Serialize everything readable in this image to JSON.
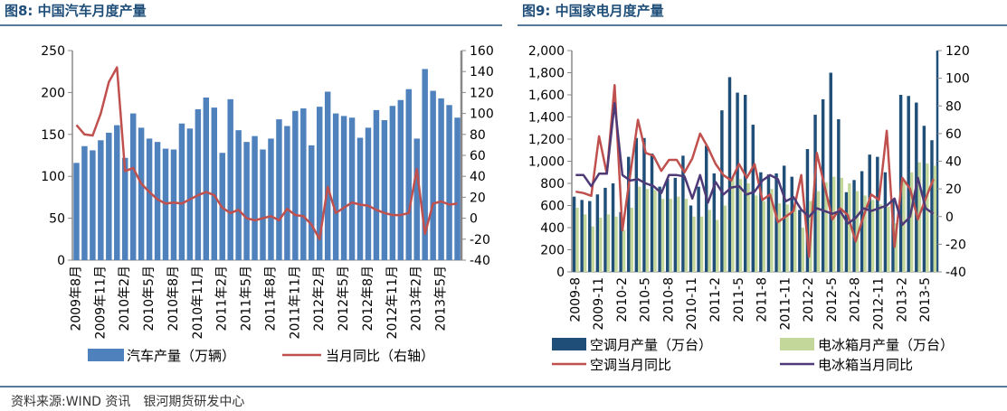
{
  "source": "资料来源:WIND 资讯　银河期货研发中心",
  "chart_data": [
    {
      "type": "bar",
      "title": "图8:  中国汽车月度产量",
      "categories": [
        "2009年8月",
        "2009年9月",
        "2009年10月",
        "2009年11月",
        "2009年12月",
        "2010年1月",
        "2010年2月",
        "2010年3月",
        "2010年4月",
        "2010年5月",
        "2010年6月",
        "2010年7月",
        "2010年8月",
        "2010年9月",
        "2010年10月",
        "2010年11月",
        "2010年12月",
        "2011年1月",
        "2011年2月",
        "2011年3月",
        "2011年4月",
        "2011年5月",
        "2011年6月",
        "2011年7月",
        "2011年8月",
        "2011年9月",
        "2011年10月",
        "2011年11月",
        "2011年12月",
        "2012年1月",
        "2012年2月",
        "2012年3月",
        "2012年4月",
        "2012年5月",
        "2012年6月",
        "2012年7月",
        "2012年8月",
        "2012年9月",
        "2012年10月",
        "2012年11月",
        "2012年12月",
        "2013年1月",
        "2013年2月",
        "2013年3月",
        "2013年4月",
        "2013年5月",
        "2013年6月",
        "2013年7月"
      ],
      "x_tick_labels": [
        "2009年8月",
        "2009年11月",
        "2010年2月",
        "2010年5月",
        "2010年8月",
        "2010年11月",
        "2011年2月",
        "2011年5月",
        "2011年8月",
        "2011年11月",
        "2012年2月",
        "2012年5月",
        "2012年8月",
        "2012年11月",
        "2013年2月",
        "2013年5月"
      ],
      "y_left": {
        "min": 0,
        "max": 250,
        "ticks": [
          0,
          50,
          100,
          150,
          200,
          250
        ]
      },
      "y_right": {
        "min": -40,
        "max": 160,
        "ticks": [
          -40,
          -20,
          0,
          20,
          40,
          60,
          80,
          100,
          120,
          140,
          160
        ]
      },
      "series": [
        {
          "name": "汽车产量（万辆）",
          "type": "bar",
          "axis": "left",
          "color": "#4f81bd",
          "values": [
            116,
            136,
            131,
            143,
            152,
            161,
            122,
            175,
            158,
            145,
            141,
            133,
            132,
            163,
            157,
            180,
            194,
            182,
            128,
            192,
            155,
            141,
            148,
            132,
            145,
            168,
            160,
            178,
            181,
            137,
            183,
            201,
            175,
            172,
            170,
            146,
            158,
            179,
            167,
            184,
            191,
            204,
            145,
            228,
            202,
            193,
            185,
            170
          ]
        },
        {
          "name": "当月同比（右轴）",
          "type": "line",
          "axis": "right",
          "color": "#c0504d",
          "values": [
            89,
            80,
            79,
            100,
            130,
            144,
            45,
            48,
            33,
            25,
            18,
            14,
            15,
            14,
            18,
            22,
            25,
            22,
            10,
            5,
            8,
            0,
            -2,
            0,
            2,
            -2,
            9,
            3,
            2,
            -6,
            -20,
            30,
            5,
            10,
            15,
            13,
            12,
            8,
            5,
            3,
            3,
            5,
            47,
            -15,
            14,
            16,
            13,
            14
          ]
        }
      ],
      "legend": [
        "汽车产量（万辆）",
        "当月同比（右轴）"
      ]
    },
    {
      "type": "bar",
      "title": "图9:  中国家电月度产量",
      "categories": [
        "2009-8",
        "2009-9",
        "2009-10",
        "2009-11",
        "2009-12",
        "2010-1",
        "2010-2",
        "2010-3",
        "2010-4",
        "2010-5",
        "2010-6",
        "2010-7",
        "2010-8",
        "2010-9",
        "2010-10",
        "2010-11",
        "2010-12",
        "2011-1",
        "2011-2",
        "2011-3",
        "2011-4",
        "2011-5",
        "2011-6",
        "2011-7",
        "2011-8",
        "2011-9",
        "2011-10",
        "2011-11",
        "2011-12",
        "2012-1",
        "2012-2",
        "2012-3",
        "2012-4",
        "2012-5",
        "2012-6",
        "2012-7",
        "2012-8",
        "2012-9",
        "2012-10",
        "2012-11",
        "2012-12",
        "2013-1",
        "2013-2",
        "2013-3",
        "2013-4",
        "2013-5",
        "2013-6"
      ],
      "x_tick_labels": [
        "2009-8",
        "2009-11",
        "2010-2",
        "2010-5",
        "2010-8",
        "2010-11",
        "2011-2",
        "2011-5",
        "2011-8",
        "2011-11",
        "2012-2",
        "2012-5",
        "2012-8",
        "2012-11",
        "2013-2",
        "2013-5"
      ],
      "y_left": {
        "min": 0,
        "max": 2000,
        "ticks": [
          0,
          200,
          400,
          600,
          800,
          1000,
          1200,
          1400,
          1600,
          1800,
          2000
        ]
      },
      "y_right": {
        "min": -40,
        "max": 120,
        "ticks": [
          -40,
          -20,
          0,
          20,
          40,
          60,
          80,
          100,
          120
        ]
      },
      "series": [
        {
          "name": "空调月产量（万台）",
          "type": "bar",
          "axis": "left",
          "color": "#1f4e79",
          "values": [
            680,
            650,
            640,
            700,
            760,
            800,
            540,
            1040,
            1210,
            1210,
            1070,
            770,
            840,
            850,
            1050,
            600,
            770,
            1140,
            890,
            1460,
            1760,
            1620,
            1600,
            1330,
            900,
            880,
            890,
            960,
            860,
            560,
            1110,
            1420,
            1560,
            1800,
            1380,
            720,
            830,
            910,
            1060,
            1040,
            900,
            650,
            1600,
            1590,
            1530,
            1320,
            1190
          ]
        },
        {
          "name": "电冰箱月产量（万台）",
          "type": "bar",
          "axis": "left",
          "color": "#c4d79b",
          "values": [
            580,
            520,
            410,
            490,
            520,
            500,
            380,
            580,
            770,
            750,
            740,
            660,
            660,
            680,
            660,
            500,
            500,
            560,
            470,
            600,
            850,
            840,
            800,
            690,
            640,
            750,
            620,
            610,
            600,
            400,
            640,
            730,
            810,
            860,
            850,
            800,
            730,
            690,
            650,
            610,
            590,
            440,
            820,
            900,
            990,
            980,
            960
          ]
        },
        {
          "name": "空调当月同比",
          "type": "line",
          "axis": "right",
          "color": "#c0504d",
          "values": [
            18,
            17,
            15,
            58,
            31,
            95,
            -10,
            30,
            70,
            46,
            44,
            33,
            41,
            41,
            32,
            42,
            60,
            50,
            38,
            30,
            26,
            38,
            28,
            38,
            12,
            16,
            -4,
            0,
            4,
            30,
            -29,
            46,
            22,
            -2,
            6,
            1,
            -18,
            0,
            16,
            12,
            62,
            -22,
            28,
            20,
            -2,
            13,
            27
          ]
        },
        {
          "name": "电冰箱当月同比",
          "type": "line",
          "axis": "right",
          "color": "#4f3a78",
          "values": [
            30,
            30,
            22,
            31,
            31,
            82,
            30,
            26,
            27,
            24,
            22,
            17,
            30,
            30,
            29,
            13,
            30,
            10,
            25,
            16,
            21,
            22,
            16,
            18,
            26,
            30,
            27,
            11,
            14,
            5,
            0,
            6,
            4,
            2,
            4,
            -5,
            -1,
            6,
            4,
            6,
            8,
            13,
            -6,
            0,
            28,
            6,
            2
          ]
        }
      ],
      "legend": [
        "空调月产量（万台）",
        "电冰箱月产量（万台）",
        "空调当月同比",
        "电冰箱当月同比"
      ]
    }
  ]
}
